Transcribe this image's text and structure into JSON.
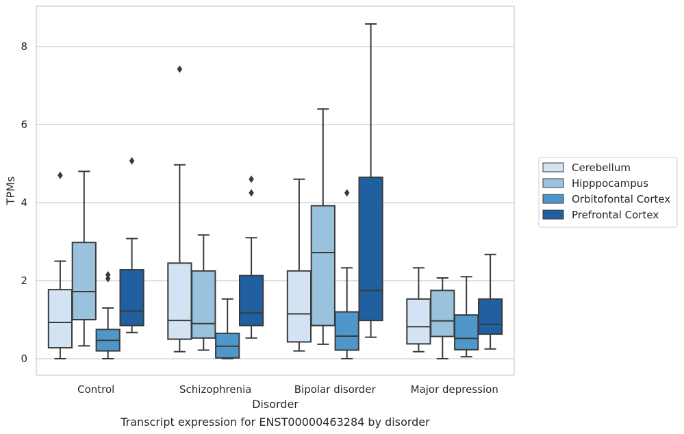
{
  "chart_data": {
    "type": "boxplot",
    "xlabel": "Disorder",
    "ylabel": "TPMs",
    "caption": "Transcript expression for ENST00000463284 by disorder",
    "categories": [
      "Control",
      "Schizophrenia",
      "Bipolar disorder",
      "Major depression"
    ],
    "yticks": [
      0,
      2,
      4,
      6,
      8
    ],
    "ylim": [
      -0.42,
      9.05
    ],
    "grid": "horizontal",
    "legend_placement": "right",
    "series": [
      {
        "name": "Cerebellum",
        "color": "#d3e3f3",
        "boxes": [
          {
            "whisker_low": 0.0,
            "q1": 0.28,
            "median": 0.93,
            "q3": 1.77,
            "whisker_high": 2.5,
            "outliers": [
              4.7
            ]
          },
          {
            "whisker_low": 0.18,
            "q1": 0.5,
            "median": 0.98,
            "q3": 2.45,
            "whisker_high": 4.97,
            "outliers": [
              7.42
            ]
          },
          {
            "whisker_low": 0.2,
            "q1": 0.43,
            "median": 1.15,
            "q3": 2.25,
            "whisker_high": 4.6,
            "outliers": []
          },
          {
            "whisker_low": 0.18,
            "q1": 0.38,
            "median": 0.82,
            "q3": 1.53,
            "whisker_high": 2.33,
            "outliers": []
          }
        ]
      },
      {
        "name": "Hipppocampus",
        "color": "#9ac2dc",
        "boxes": [
          {
            "whisker_low": 0.33,
            "q1": 1.0,
            "median": 1.72,
            "q3": 2.98,
            "whisker_high": 4.8,
            "outliers": []
          },
          {
            "whisker_low": 0.22,
            "q1": 0.53,
            "median": 0.9,
            "q3": 2.25,
            "whisker_high": 3.17,
            "outliers": []
          },
          {
            "whisker_low": 0.37,
            "q1": 0.85,
            "median": 2.72,
            "q3": 3.92,
            "whisker_high": 6.4,
            "outliers": []
          },
          {
            "whisker_low": 0.0,
            "q1": 0.57,
            "median": 0.97,
            "q3": 1.75,
            "whisker_high": 2.07,
            "outliers": []
          }
        ]
      },
      {
        "name": "Orbitofontal Cortex",
        "color": "#5097c9",
        "boxes": [
          {
            "whisker_low": 0.0,
            "q1": 0.2,
            "median": 0.47,
            "q3": 0.75,
            "whisker_high": 1.3,
            "outliers": [
              2.05,
              2.15
            ]
          },
          {
            "whisker_low": 0.0,
            "q1": 0.02,
            "median": 0.32,
            "q3": 0.65,
            "whisker_high": 1.53,
            "outliers": []
          },
          {
            "whisker_low": 0.0,
            "q1": 0.22,
            "median": 0.58,
            "q3": 1.2,
            "whisker_high": 2.33,
            "outliers": [
              4.25
            ]
          },
          {
            "whisker_low": 0.05,
            "q1": 0.23,
            "median": 0.52,
            "q3": 1.12,
            "whisker_high": 2.1,
            "outliers": []
          }
        ]
      },
      {
        "name": "Prefrontal Cortex",
        "color": "#2060a0",
        "boxes": [
          {
            "whisker_low": 0.67,
            "q1": 0.85,
            "median": 1.22,
            "q3": 2.28,
            "whisker_high": 3.08,
            "outliers": [
              5.07
            ]
          },
          {
            "whisker_low": 0.53,
            "q1": 0.85,
            "median": 1.17,
            "q3": 2.13,
            "whisker_high": 3.1,
            "outliers": [
              4.25,
              4.6
            ]
          },
          {
            "whisker_low": 0.55,
            "q1": 0.98,
            "median": 1.75,
            "q3": 4.65,
            "whisker_high": 8.58,
            "outliers": []
          },
          {
            "whisker_low": 0.25,
            "q1": 0.63,
            "median": 0.88,
            "q3": 1.53,
            "whisker_high": 2.67,
            "outliers": []
          }
        ]
      }
    ]
  }
}
